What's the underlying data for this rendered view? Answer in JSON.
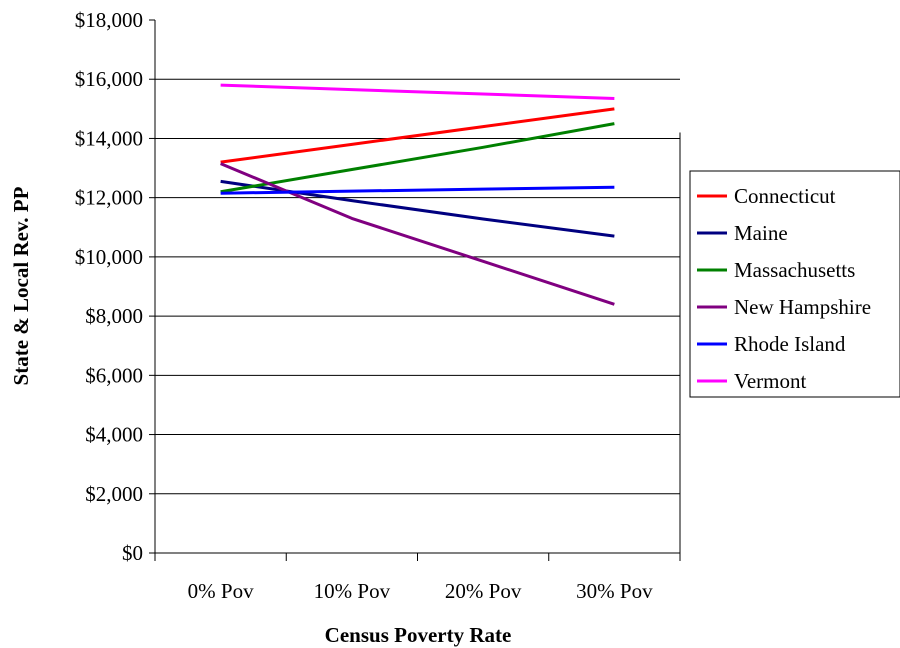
{
  "chart_data": {
    "type": "line",
    "categories": [
      "0% Pov",
      "10% Pov",
      "20% Pov",
      "30% Pov"
    ],
    "xlabel": "Census Poverty Rate",
    "ylabel": "State & Local Rev. PP",
    "ylim": [
      0,
      18000
    ],
    "yticks": [
      "$0",
      "$2,000",
      "$4,000",
      "$6,000",
      "$8,000",
      "$10,000",
      "$12,000",
      "$14,000",
      "$16,000",
      "$18,000"
    ],
    "grid": true,
    "legend_position": "right",
    "series": [
      {
        "name": "Connecticut",
        "color": "#ff0000",
        "values": [
          13200,
          13800,
          14400,
          15000
        ]
      },
      {
        "name": "Maine",
        "color": "#000080",
        "values": [
          12550,
          11900,
          11280,
          10700
        ]
      },
      {
        "name": "Massachusetts",
        "color": "#008000",
        "values": [
          12200,
          12950,
          13700,
          14500
        ]
      },
      {
        "name": "New Hampshire",
        "color": "#800080",
        "values": [
          13150,
          11300,
          9850,
          8400
        ]
      },
      {
        "name": "Rhode Island",
        "color": "#0000ff",
        "values": [
          12150,
          12220,
          12290,
          12350
        ]
      },
      {
        "name": "Vermont",
        "color": "#ff00ff",
        "values": [
          15800,
          15650,
          15500,
          15350
        ]
      }
    ]
  }
}
